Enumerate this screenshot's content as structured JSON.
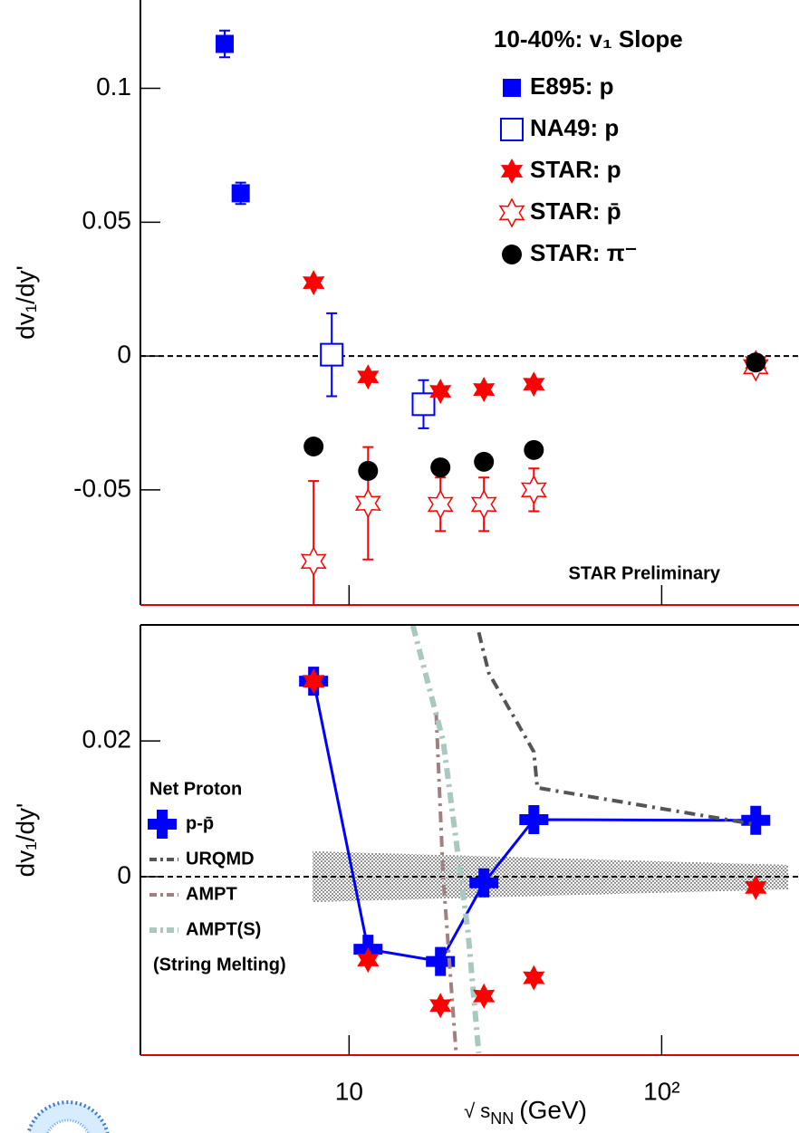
{
  "chart_data": [
    {
      "type": "scatter",
      "title": "10-40%: v₁ Slope",
      "ylabel": "dv₁/dy'",
      "log_x": true,
      "xlim": [
        2.15,
        275
      ],
      "ylim": [
        -0.093,
        0.133
      ],
      "yticks": [
        -0.05,
        0,
        0.05,
        0.1
      ],
      "hline": 0,
      "annotation": "STAR Preliminary",
      "legend": "upper right",
      "series": [
        {
          "name": "E895: p",
          "color": "#0000ff",
          "marker": "square",
          "mode": "markers",
          "x": [
            4.0,
            4.5
          ],
          "values": [
            0.1166,
            0.0608
          ],
          "errors": [
            0.005,
            0.004
          ]
        },
        {
          "name": "NA49: p",
          "color": "#0000ff",
          "marker": "open-square",
          "mode": "markers",
          "x": [
            8.8,
            17.3
          ],
          "values": [
            0.0005,
            -0.018
          ],
          "errors": [
            0.0155,
            0.009
          ]
        },
        {
          "name": "STAR: p",
          "color": "#ff0000",
          "marker": "star",
          "mode": "markers",
          "x": [
            7.7,
            11.5,
            19.6,
            27,
            39,
            200
          ],
          "values": [
            0.0274,
            -0.0078,
            -0.0132,
            -0.0125,
            -0.0105,
            -0.0024
          ]
        },
        {
          "name": "STAR: p̄",
          "color": "#ff0000",
          "marker": "open-star",
          "mode": "markers",
          "x": [
            7.7,
            11.5,
            19.6,
            27,
            39,
            200
          ],
          "values": [
            -0.0767,
            -0.055,
            -0.0554,
            -0.0554,
            -0.05,
            -0.004
          ],
          "errors": [
            0.03,
            0.021,
            0.01,
            0.01,
            0.008,
            0.002
          ]
        },
        {
          "name": "STAR: π⁻",
          "color": "#000000",
          "marker": "circle",
          "mode": "markers",
          "x": [
            7.7,
            11.5,
            19.6,
            27,
            39,
            200
          ],
          "values": [
            -0.0338,
            -0.0429,
            -0.0416,
            -0.0395,
            -0.0351,
            -0.0024
          ]
        }
      ]
    },
    {
      "type": "scatter",
      "ylabel": "dv₁/dy'",
      "log_x": true,
      "xlim": [
        2.15,
        275
      ],
      "ylim": [
        -0.0263,
        0.0371
      ],
      "yticks": [
        0,
        0.02
      ],
      "hline": 0,
      "xticks": [
        10,
        {
          "value": 100,
          "label": "10²"
        }
      ],
      "xlabel": {
        "main": "√ s",
        "sub": "NN",
        "unit": "(GeV)"
      },
      "legend_title": "Net Proton",
      "legend": "lower left",
      "series": [
        {
          "name": "p-p̄",
          "color": "#0000ff",
          "marker": "cross",
          "mode": "lines+markers",
          "x": [
            7.7,
            11.5,
            19.6,
            27,
            39,
            200
          ],
          "values": [
            0.0288,
            -0.0107,
            -0.0125,
            -0.0009,
            0.0084,
            0.0083
          ]
        },
        {
          "name": "URQMD",
          "color": "#555555",
          "mode": "lines",
          "x": [
            26,
            28,
            39,
            40,
            200
          ],
          "values": [
            0.036,
            0.03,
            0.0184,
            0.0131,
            0.0077
          ]
        },
        {
          "name": "AMPT",
          "color": "#a08080",
          "mode": "lines",
          "x": [
            19,
            20,
            22
          ],
          "values": [
            0.024,
            0.0,
            -0.026
          ]
        },
        {
          "name": "AMPT(S)",
          "color": "#a8c8c0",
          "mode": "lines",
          "x": [
            16,
            20,
            24,
            26
          ],
          "values": [
            0.037,
            0.02,
            -0.008,
            -0.026
          ]
        },
        {
          "name": "(String Melting)",
          "mode": "none",
          "x": [],
          "values": []
        },
        {
          "name": "STAR: p",
          "color": "#ff0000",
          "marker": "star",
          "mode": "markers",
          "legend": false,
          "x": [
            7.7,
            11.5,
            19.6,
            27,
            39,
            200
          ],
          "values": [
            0.0288,
            -0.0123,
            -0.019,
            -0.0176,
            -0.0149,
            -0.0016
          ]
        }
      ]
    }
  ]
}
